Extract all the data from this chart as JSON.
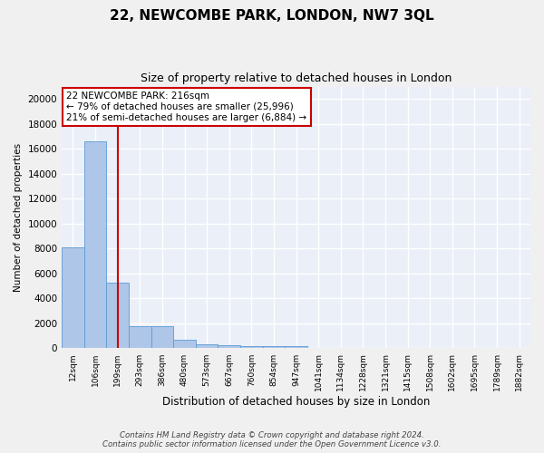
{
  "title": "22, NEWCOMBE PARK, LONDON, NW7 3QL",
  "subtitle": "Size of property relative to detached houses in London",
  "xlabel": "Distribution of detached houses by size in London",
  "ylabel": "Number of detached properties",
  "bin_labels": [
    "12sqm",
    "106sqm",
    "199sqm",
    "293sqm",
    "386sqm",
    "480sqm",
    "573sqm",
    "667sqm",
    "760sqm",
    "854sqm",
    "947sqm",
    "1041sqm",
    "1134sqm",
    "1228sqm",
    "1321sqm",
    "1415sqm",
    "1508sqm",
    "1602sqm",
    "1695sqm",
    "1789sqm",
    "1882sqm"
  ],
  "bar_heights": [
    8100,
    16600,
    5300,
    1750,
    1750,
    700,
    310,
    250,
    210,
    180,
    160,
    0,
    0,
    0,
    0,
    0,
    0,
    0,
    0,
    0,
    0
  ],
  "bar_color": "#aec6e8",
  "bar_edge_color": "#5b9bd5",
  "bg_color": "#eaeff8",
  "grid_color": "#ffffff",
  "vline_x": 2,
  "vline_color": "#cc0000",
  "annotation_text": "22 NEWCOMBE PARK: 216sqm\n← 79% of detached houses are smaller (25,996)\n21% of semi-detached houses are larger (6,884) →",
  "annotation_box_color": "#ffffff",
  "annotation_box_edge": "#cc0000",
  "footer": "Contains HM Land Registry data © Crown copyright and database right 2024.\nContains public sector information licensed under the Open Government Licence v3.0.",
  "fig_bg": "#f0f0f0",
  "ylim": [
    0,
    21000
  ],
  "yticks": [
    0,
    2000,
    4000,
    6000,
    8000,
    10000,
    12000,
    14000,
    16000,
    18000,
    20000
  ]
}
